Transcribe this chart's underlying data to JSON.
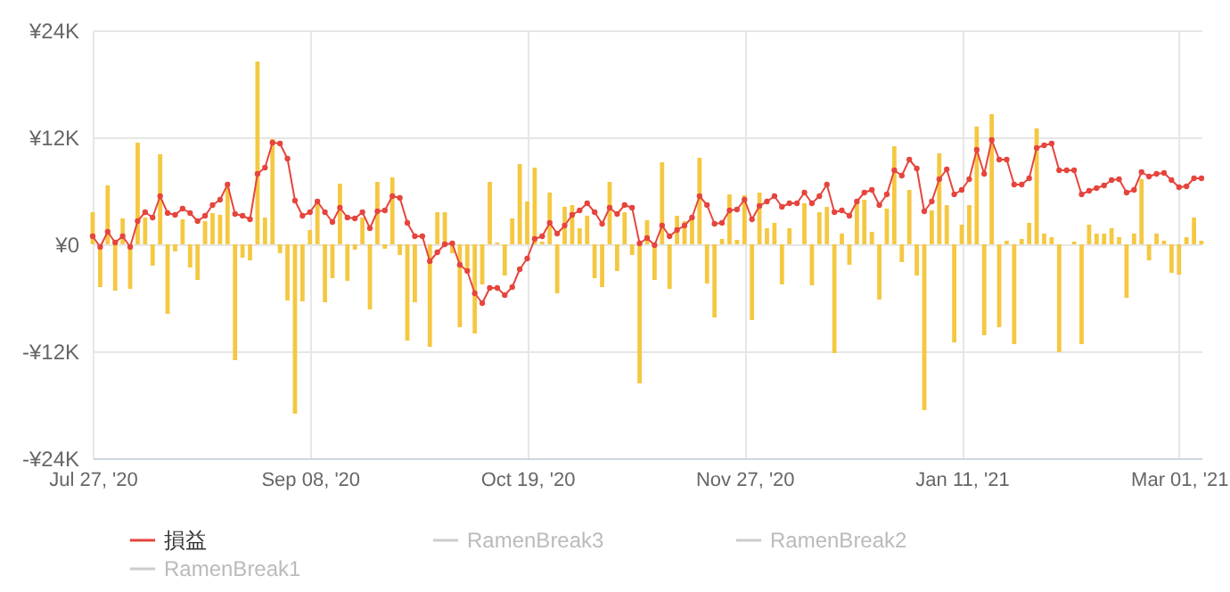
{
  "chart_data": {
    "type": "bar",
    "categories": [
      "Jul 27, '20",
      null,
      null,
      null,
      null,
      null,
      null,
      null,
      null,
      null,
      null,
      null,
      null,
      null,
      null,
      null,
      null,
      null,
      null,
      null,
      null,
      null,
      null,
      null,
      null,
      null,
      null,
      null,
      null,
      "Sep 08, '20",
      null,
      null,
      null,
      null,
      null,
      null,
      null,
      null,
      null,
      null,
      null,
      null,
      null,
      null,
      null,
      null,
      null,
      null,
      null,
      null,
      null,
      null,
      null,
      null,
      null,
      null,
      null,
      null,
      "Oct 19, '20",
      null,
      null,
      null,
      null,
      null,
      null,
      null,
      null,
      null,
      null,
      null,
      null,
      null,
      null,
      null,
      null,
      null,
      null,
      null,
      null,
      null,
      null,
      null,
      null,
      null,
      null,
      null,
      null,
      "Nov 27, '20",
      null,
      null,
      null,
      null,
      null,
      null,
      null,
      null,
      null,
      null,
      null,
      null,
      null,
      null,
      null,
      null,
      null,
      null,
      null,
      null,
      null,
      null,
      null,
      null,
      null,
      null,
      null,
      null,
      "Jan 11, '21",
      null,
      null,
      null,
      null,
      null,
      null,
      null,
      null,
      null,
      null,
      null,
      null,
      null,
      null,
      null,
      null,
      null,
      null,
      null,
      null,
      null,
      null,
      null,
      null,
      null,
      null,
      null,
      null,
      "Mar 01, '21",
      null,
      null,
      null
    ],
    "series": [
      {
        "color": "#f5c842",
        "values": [
          3.6,
          -4.8,
          6.6,
          -5.2,
          2.9,
          -5.0,
          11.4,
          3.0,
          -2.4,
          10.1,
          -7.8,
          -0.8,
          2.8,
          -2.6,
          -4.0,
          2.6,
          3.5,
          3.3,
          6.4,
          -13.0,
          -1.5,
          -1.8,
          20.5,
          3.0,
          11.8,
          -1.0,
          -6.3,
          -19.0,
          -6.4,
          1.6,
          4.5,
          -6.5,
          -3.8,
          6.8,
          -4.1,
          -0.6,
          3.0,
          -7.3,
          7.0,
          -0.5,
          7.5,
          -1.2,
          -10.8,
          -6.5,
          0,
          -11.5,
          3.6,
          3.6,
          -1.0,
          -9.3,
          -3.0,
          -10.0,
          -4.5,
          7.0,
          0.2,
          -3.5,
          2.9,
          9.0,
          4.8,
          8.6,
          0.3,
          5.8,
          -5.5,
          4.2,
          4.4,
          1.8,
          3.2,
          -3.8,
          -4.8,
          7.0,
          -3.0,
          3.6,
          -1.2,
          -15.6,
          2.7,
          -4.0,
          9.2,
          -5.0,
          3.2,
          2.6,
          3.2,
          9.7,
          -4.4,
          -8.2,
          0.6,
          5.6,
          0.5,
          5.5,
          -8.5,
          5.8,
          1.8,
          2.4,
          -4.5,
          1.8,
          0,
          4.6,
          -4.6,
          3.6,
          4.2,
          -12.2,
          1.2,
          -2.3,
          4.6,
          5.0,
          1.4,
          -6.2,
          4.0,
          11.0,
          -2.0,
          6.1,
          -3.5,
          -18.6,
          3.8,
          10.2,
          4.4,
          -11.0,
          2.2,
          4.4,
          13.2,
          -10.2,
          14.6,
          -9.3,
          0.4,
          -11.2,
          0.6,
          2.4,
          13.0,
          1.2,
          0.8,
          -12.1,
          0,
          0.3,
          -11.2,
          2.2,
          1.2,
          1.2,
          1.8,
          0.8,
          -6.0,
          1.2,
          7.3,
          -1.8,
          1.2,
          0.4,
          -3.2,
          -3.4,
          0.8,
          3.0,
          0.4
        ]
      },
      {
        "type": "line",
        "name": "損益",
        "color": "#e5453d",
        "values": [
          0.9,
          -0.3,
          1.4,
          0.2,
          0.9,
          -0.3,
          2.6,
          3.6,
          3.0,
          5.4,
          3.5,
          3.3,
          4.0,
          3.5,
          2.6,
          3.2,
          4.4,
          5.0,
          6.7,
          3.4,
          3.2,
          2.8,
          7.9,
          8.6,
          11.4,
          11.3,
          9.6,
          4.9,
          3.2,
          3.6,
          4.8,
          3.6,
          2.5,
          4.1,
          3.0,
          2.9,
          3.6,
          1.8,
          3.7,
          3.8,
          5.4,
          5.2,
          2.4,
          0.9,
          0.9,
          -1.9,
          -0.9,
          0,
          0.1,
          -2.3,
          -3.0,
          -5.5,
          -6.6,
          -4.9,
          -4.9,
          -5.7,
          -4.8,
          -2.8,
          -1.6,
          0.6,
          0.9,
          2.4,
          1.2,
          2.1,
          3.3,
          3.8,
          4.6,
          3.6,
          2.3,
          4.1,
          3.4,
          4.4,
          4.1,
          0.1,
          0.7,
          -0.1,
          2.1,
          0.9,
          1.6,
          2.1,
          3.0,
          5.4,
          4.4,
          2.3,
          2.4,
          3.8,
          3.9,
          5.0,
          2.8,
          4.3,
          4.8,
          5.4,
          4.2,
          4.6,
          4.6,
          5.8,
          4.6,
          5.4,
          6.7,
          3.6,
          3.8,
          3.2,
          4.8,
          5.8,
          6.1,
          4.4,
          5.6,
          8.3,
          7.7,
          9.5,
          8.5,
          3.7,
          4.8,
          7.3,
          8.4,
          5.6,
          6.1,
          7.3,
          10.6,
          7.9,
          11.7,
          9.5,
          9.5,
          6.7,
          6.7,
          7.4,
          10.8,
          11.1,
          11.3,
          8.3,
          8.3,
          8.3,
          5.6,
          6.0,
          6.3,
          6.6,
          7.2,
          7.3,
          5.8,
          6.1,
          8.1,
          7.6,
          7.9,
          8.0,
          7.2,
          6.4,
          6.5,
          7.4,
          7.4
        ]
      },
      {
        "type": "line",
        "name": "RamenBreak2",
        "color": "#cccccc",
        "values": [
          null,
          null,
          null,
          null,
          null,
          null,
          null,
          null,
          null,
          null,
          null,
          null,
          null,
          null,
          null,
          null,
          null,
          null,
          null,
          null,
          null,
          null,
          null,
          null,
          null,
          null,
          null,
          null,
          null,
          null,
          null,
          null,
          null,
          null,
          null,
          null,
          null,
          null,
          null,
          null,
          null,
          null,
          null,
          null,
          null,
          null,
          null,
          null,
          null,
          null,
          null,
          null,
          null,
          null,
          null,
          null,
          null,
          null,
          null,
          null,
          null,
          null,
          null,
          null,
          null,
          null,
          null,
          null,
          null,
          null,
          null,
          null,
          null,
          null,
          null,
          null,
          null,
          null,
          null,
          null,
          null,
          null,
          null,
          null,
          null,
          null,
          null,
          null,
          null,
          null,
          null,
          null,
          null,
          null,
          null,
          null,
          null,
          null,
          null,
          null,
          null,
          null,
          null,
          null,
          null,
          null,
          null,
          null,
          null,
          null,
          null,
          null,
          null,
          null,
          null,
          null,
          null,
          null,
          null,
          null,
          null,
          null,
          null,
          null,
          null,
          null,
          null,
          null,
          null,
          null,
          null,
          null,
          null,
          null,
          null,
          null,
          null,
          null,
          null,
          null,
          null,
          null,
          null,
          null,
          null,
          null,
          null,
          null,
          null
        ]
      },
      {
        "type": "line",
        "name": "RamenBreak3",
        "color": "#cccccc",
        "values": [
          null,
          null,
          null,
          null,
          null,
          null,
          null,
          null,
          null,
          null,
          null,
          null,
          null,
          null,
          null,
          null,
          null,
          null,
          null,
          null,
          null,
          null,
          null,
          null,
          null,
          null,
          null,
          null,
          null,
          null,
          null,
          null,
          null,
          null,
          null,
          null,
          null,
          null,
          null,
          null,
          null,
          null,
          null,
          null,
          null,
          null,
          null,
          null,
          null,
          null,
          null,
          null,
          null,
          null,
          null,
          null,
          null,
          null,
          null,
          null,
          null,
          null,
          null,
          null,
          null,
          null,
          null,
          null,
          null,
          null,
          null,
          null,
          null,
          null,
          null,
          null,
          null,
          null,
          null,
          null,
          null,
          null,
          null,
          null,
          null,
          null,
          null,
          null,
          null,
          null,
          null,
          null,
          null,
          null,
          null,
          null,
          null,
          null,
          null,
          null,
          null,
          null,
          null,
          null,
          null,
          null,
          null,
          null,
          null,
          null,
          null,
          null,
          null,
          null,
          null,
          null,
          null,
          null,
          null,
          null,
          null,
          null,
          null,
          null,
          null,
          null,
          null,
          null,
          null,
          null,
          null,
          null,
          null,
          null,
          null,
          null,
          null,
          null,
          null,
          null,
          null,
          null,
          null,
          null,
          null,
          null,
          null,
          null,
          null
        ]
      },
      {
        "type": "line",
        "name": "RamenBreak1",
        "color": "#cccccc",
        "values": [
          null,
          null,
          null,
          null,
          null,
          null,
          null,
          null,
          null,
          null,
          null,
          null,
          null,
          null,
          null,
          null,
          null,
          null,
          null,
          null,
          null,
          null,
          null,
          null,
          null,
          null,
          null,
          null,
          null,
          null,
          null,
          null,
          null,
          null,
          null,
          null,
          null,
          null,
          null,
          null,
          null,
          null,
          null,
          null,
          null,
          null,
          null,
          null,
          null,
          null,
          null,
          null,
          null,
          null,
          null,
          null,
          null,
          null,
          null,
          null,
          null,
          null,
          null,
          null,
          null,
          null,
          null,
          null,
          null,
          null,
          null,
          null,
          null,
          null,
          null,
          null,
          null,
          null,
          null,
          null,
          null,
          null,
          null,
          null,
          null,
          null,
          null,
          null,
          null,
          null,
          null,
          null,
          null,
          null,
          null,
          null,
          null,
          null,
          null,
          null,
          null,
          null,
          null,
          null,
          null,
          null,
          null,
          null,
          null,
          null,
          null,
          null,
          null,
          null,
          null,
          null,
          null,
          null,
          null,
          null,
          null,
          null,
          null,
          null,
          null,
          null,
          null,
          null,
          null,
          null,
          null,
          null,
          null,
          null,
          null,
          null,
          null,
          null,
          null,
          null,
          null,
          null,
          null,
          null,
          null,
          null,
          null,
          null,
          null
        ]
      }
    ],
    "ylim": [
      -24,
      24
    ],
    "yticks": [
      {
        "value": -24,
        "label": "-¥24K"
      },
      {
        "value": -12,
        "label": "-¥12K"
      },
      {
        "value": 0,
        "label": "¥0"
      },
      {
        "value": 12,
        "label": "¥12K"
      },
      {
        "value": 24,
        "label": "¥24K"
      }
    ],
    "grid": true,
    "legend": "bottom",
    "marker": "circle",
    "line_style": "solid"
  }
}
